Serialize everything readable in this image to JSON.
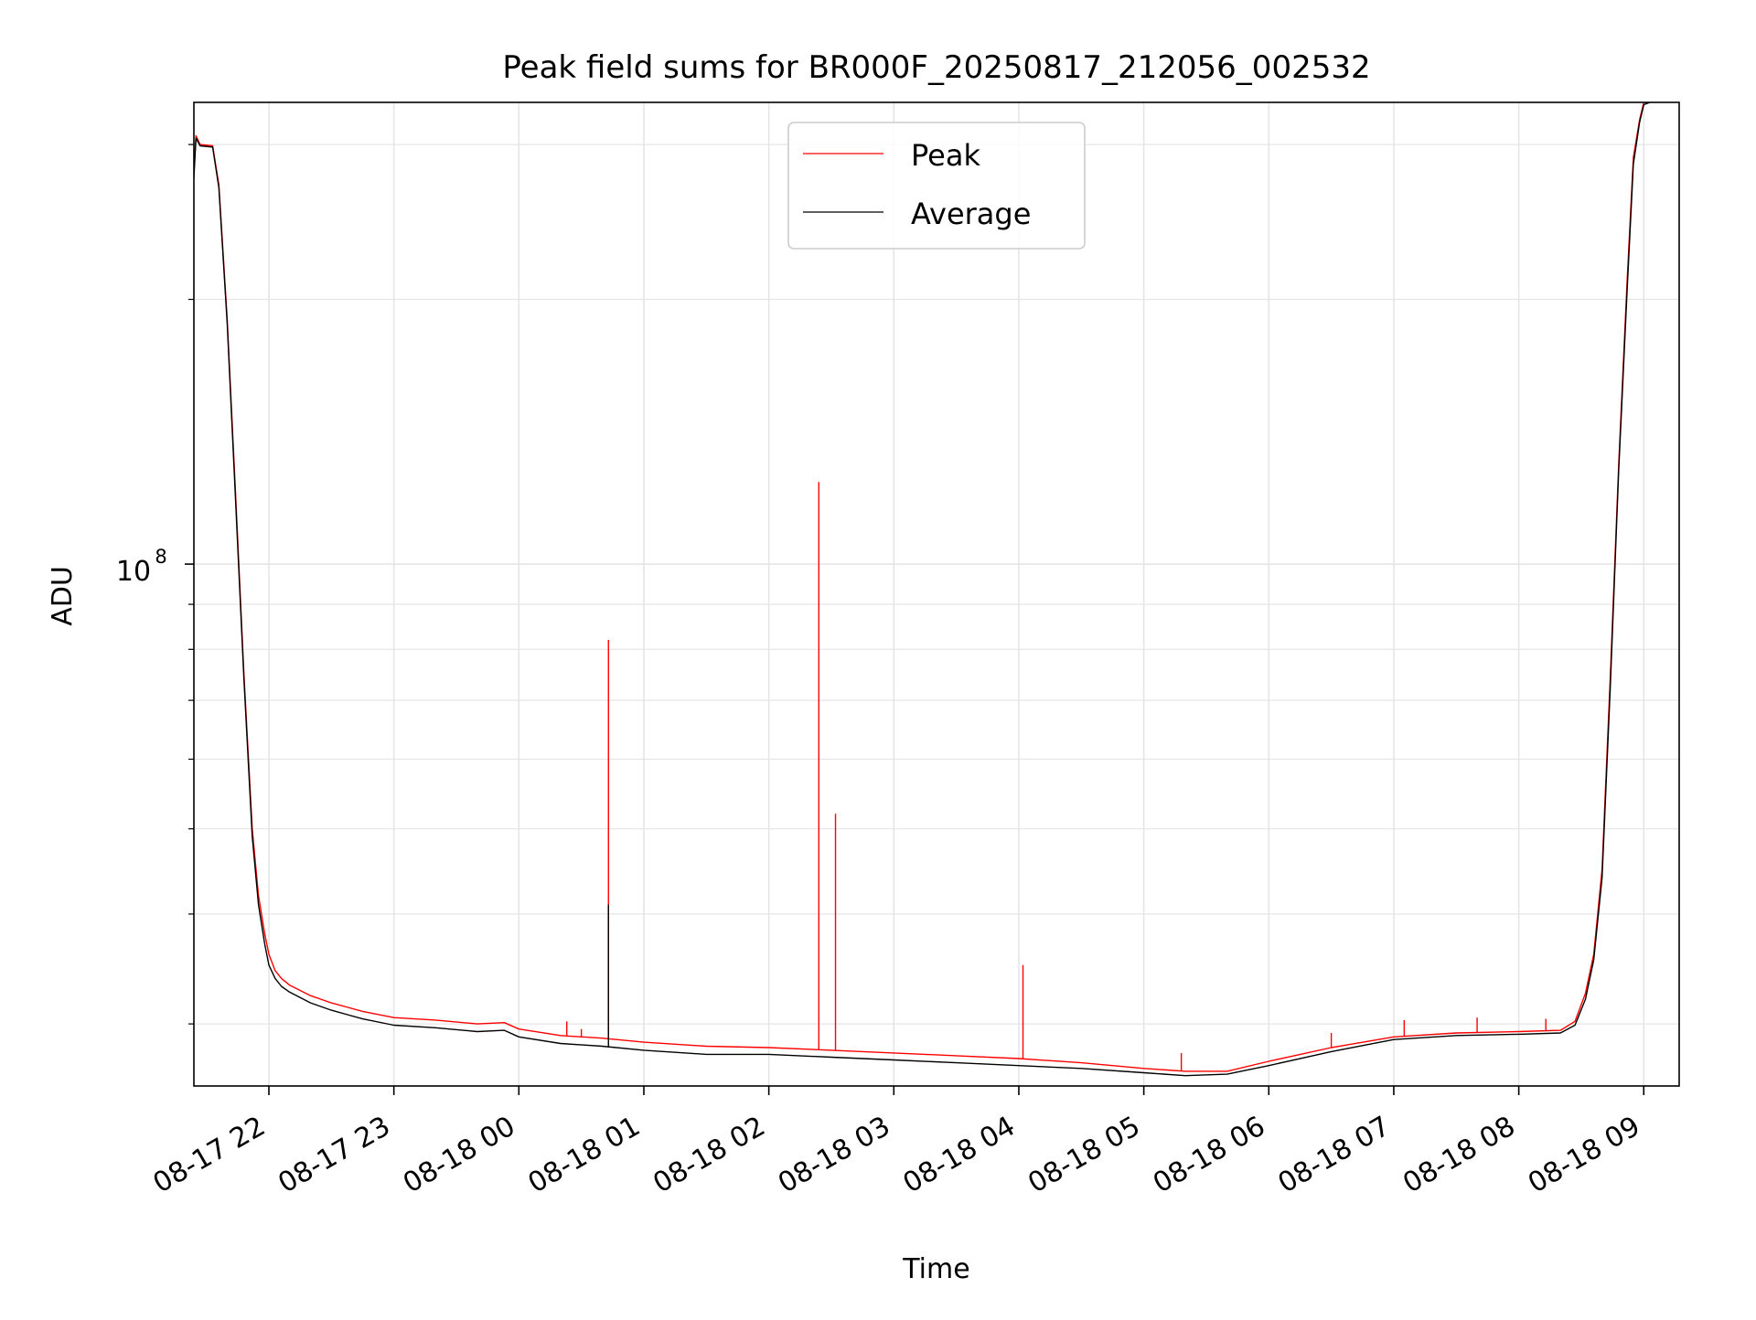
{
  "chart_data": {
    "type": "line",
    "title": "Peak field sums for BR000F_20250817_212056_002532",
    "xlabel": "Time",
    "ylabel": "ADU",
    "x_axis_type": "datetime",
    "xlim": [
      "2025-08-17 21:24",
      "2025-08-18 09:17"
    ],
    "y_scale": "log",
    "ylim": [
      25500000,
      335000000
    ],
    "x_ticks": [
      "2025-08-17 22:00",
      "2025-08-17 23:00",
      "2025-08-18 00:00",
      "2025-08-18 01:00",
      "2025-08-18 02:00",
      "2025-08-18 03:00",
      "2025-08-18 04:00",
      "2025-08-18 05:00",
      "2025-08-18 06:00",
      "2025-08-18 07:00",
      "2025-08-18 08:00",
      "2025-08-18 09:00"
    ],
    "x_tick_labels": [
      "08-17 22",
      "08-17 23",
      "08-18 00",
      "08-18 01",
      "08-18 02",
      "08-18 03",
      "08-18 04",
      "08-18 05",
      "08-18 06",
      "08-18 07",
      "08-18 08",
      "08-18 09"
    ],
    "y_major_ticks": [
      {
        "value": 100000000,
        "base": "10",
        "exp": "8"
      }
    ],
    "y_minor_ticks": [
      30000000,
      40000000,
      50000000,
      60000000,
      70000000,
      80000000,
      90000000,
      200000000,
      300000000
    ],
    "grid": true,
    "legend": {
      "placement": "upper-center",
      "entries": [
        "Peak",
        "Average"
      ]
    },
    "colors": {
      "Peak": "#ff0000",
      "Average": "#000000",
      "grid": "#e5e5e5"
    },
    "series": [
      {
        "name": "Peak",
        "color": "#ff0000",
        "x": [
          "2025-08-17 21:24",
          "2025-08-17 21:25",
          "2025-08-17 21:27",
          "2025-08-17 21:33",
          "2025-08-17 21:36",
          "2025-08-17 21:40",
          "2025-08-17 21:44",
          "2025-08-17 21:48",
          "2025-08-17 21:52",
          "2025-08-17 21:55",
          "2025-08-17 21:58",
          "2025-08-17 22:00",
          "2025-08-17 22:03",
          "2025-08-17 22:06",
          "2025-08-17 22:10",
          "2025-08-17 22:20",
          "2025-08-17 22:30",
          "2025-08-17 22:45",
          "2025-08-17 23:00",
          "2025-08-17 23:20",
          "2025-08-17 23:40",
          "2025-08-17 23:53",
          "2025-08-18 00:00",
          "2025-08-18 00:20",
          "2025-08-18 00:40",
          "2025-08-18 01:00",
          "2025-08-18 01:30",
          "2025-08-18 02:00",
          "2025-08-18 02:30",
          "2025-08-18 03:00",
          "2025-08-18 03:30",
          "2025-08-18 04:00",
          "2025-08-18 04:30",
          "2025-08-18 05:00",
          "2025-08-18 05:20",
          "2025-08-18 05:40",
          "2025-08-18 06:00",
          "2025-08-18 06:30",
          "2025-08-18 07:00",
          "2025-08-18 07:30",
          "2025-08-18 08:00",
          "2025-08-18 08:20",
          "2025-08-18 08:27",
          "2025-08-18 08:32",
          "2025-08-18 08:36",
          "2025-08-18 08:40",
          "2025-08-18 08:44",
          "2025-08-18 08:48",
          "2025-08-18 08:52",
          "2025-08-18 08:55",
          "2025-08-18 08:58",
          "2025-08-18 09:00",
          "2025-08-18 09:03"
        ],
        "y": [
          280000000,
          307000000,
          300000000,
          299000000,
          270000000,
          190000000,
          120000000,
          75000000,
          50000000,
          42000000,
          38000000,
          36000000,
          34500000,
          33800000,
          33200000,
          32300000,
          31700000,
          31000000,
          30500000,
          30300000,
          30000000,
          30100000,
          29600000,
          29100000,
          28900000,
          28600000,
          28300000,
          28200000,
          28000000,
          27800000,
          27600000,
          27400000,
          27100000,
          26700000,
          26500000,
          26500000,
          27200000,
          28200000,
          29000000,
          29300000,
          29400000,
          29500000,
          30200000,
          32500000,
          36000000,
          45000000,
          75000000,
          130000000,
          210000000,
          290000000,
          320000000,
          335000000,
          335000000
        ]
      },
      {
        "name": "Average",
        "color": "#000000",
        "x": [
          "2025-08-17 21:24",
          "2025-08-17 21:25",
          "2025-08-17 21:27",
          "2025-08-17 21:33",
          "2025-08-17 21:36",
          "2025-08-17 21:40",
          "2025-08-17 21:44",
          "2025-08-17 21:48",
          "2025-08-17 21:52",
          "2025-08-17 21:55",
          "2025-08-17 21:58",
          "2025-08-17 22:00",
          "2025-08-17 22:03",
          "2025-08-17 22:06",
          "2025-08-17 22:10",
          "2025-08-17 22:20",
          "2025-08-17 22:30",
          "2025-08-17 22:45",
          "2025-08-17 23:00",
          "2025-08-17 23:20",
          "2025-08-17 23:40",
          "2025-08-17 23:53",
          "2025-08-18 00:00",
          "2025-08-18 00:20",
          "2025-08-18 00:40",
          "2025-08-18 01:00",
          "2025-08-18 01:30",
          "2025-08-18 02:00",
          "2025-08-18 02:30",
          "2025-08-18 03:00",
          "2025-08-18 03:30",
          "2025-08-18 04:00",
          "2025-08-18 04:30",
          "2025-08-18 05:00",
          "2025-08-18 05:20",
          "2025-08-18 05:40",
          "2025-08-18 06:00",
          "2025-08-18 06:30",
          "2025-08-18 07:00",
          "2025-08-18 07:30",
          "2025-08-18 08:00",
          "2025-08-18 08:20",
          "2025-08-18 08:27",
          "2025-08-18 08:32",
          "2025-08-18 08:36",
          "2025-08-18 08:40",
          "2025-08-18 08:44",
          "2025-08-18 08:48",
          "2025-08-18 08:52",
          "2025-08-18 08:55",
          "2025-08-18 08:58",
          "2025-08-18 09:00",
          "2025-08-18 09:03"
        ],
        "y": [
          275000000,
          305000000,
          299000000,
          298000000,
          268000000,
          188000000,
          118000000,
          74000000,
          49000000,
          41000000,
          37000000,
          35000000,
          33800000,
          33100000,
          32600000,
          31700000,
          31100000,
          30400000,
          29900000,
          29700000,
          29400000,
          29500000,
          29000000,
          28500000,
          28300000,
          28000000,
          27700000,
          27700000,
          27500000,
          27300000,
          27100000,
          26900000,
          26700000,
          26400000,
          26200000,
          26300000,
          26900000,
          27900000,
          28800000,
          29100000,
          29200000,
          29300000,
          29900000,
          32000000,
          35500000,
          44000000,
          73000000,
          128000000,
          205000000,
          285000000,
          318000000,
          333000000,
          335000000
        ]
      }
    ],
    "spikes": [
      {
        "series": "Peak",
        "x": "2025-08-18 00:43",
        "y": 82000000
      },
      {
        "series": "Average",
        "x": "2025-08-18 00:43",
        "y": 41000000
      },
      {
        "series": "Peak",
        "x": "2025-08-18 02:24",
        "y": 124000000
      },
      {
        "series": "Peak",
        "x": "2025-08-18 02:32",
        "y": 52000000
      },
      {
        "series": "Peak",
        "x": "2025-08-18 04:02",
        "y": 35000000
      },
      {
        "series": "Peak",
        "x": "2025-08-18 00:23",
        "y": 30200000
      },
      {
        "series": "Peak",
        "x": "2025-08-18 00:30",
        "y": 29600000
      },
      {
        "series": "Peak",
        "x": "2025-08-18 05:18",
        "y": 27800000
      },
      {
        "series": "Peak",
        "x": "2025-08-18 06:30",
        "y": 29300000
      },
      {
        "series": "Peak",
        "x": "2025-08-18 07:05",
        "y": 30300000
      },
      {
        "series": "Peak",
        "x": "2025-08-18 07:40",
        "y": 30500000
      },
      {
        "series": "Peak",
        "x": "2025-08-18 08:13",
        "y": 30400000
      }
    ]
  }
}
